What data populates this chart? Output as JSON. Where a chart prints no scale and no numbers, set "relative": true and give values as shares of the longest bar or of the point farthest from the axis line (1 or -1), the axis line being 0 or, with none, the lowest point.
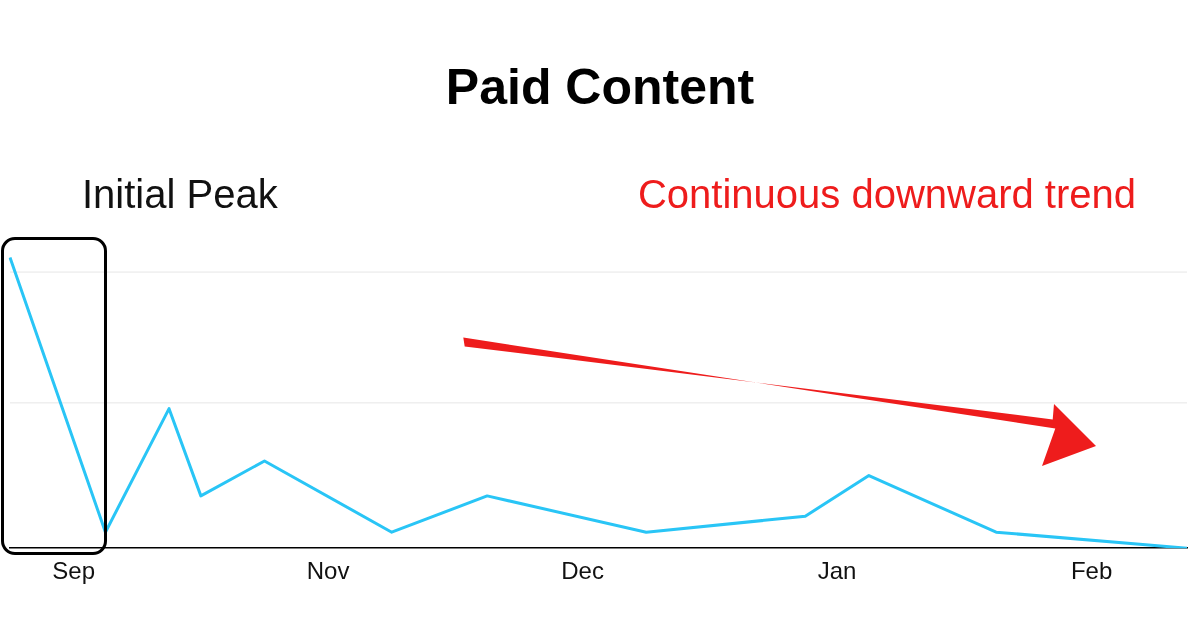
{
  "chart_data": {
    "type": "line",
    "title": "Paid Content",
    "relative": true,
    "categories": [
      null,
      null,
      "Sep",
      null,
      null,
      null,
      null,
      null,
      null,
      null,
      "Nov",
      null,
      null,
      null,
      null,
      null,
      null,
      null,
      "Dec",
      null,
      null,
      null,
      null,
      null,
      null,
      null,
      "Jan",
      null,
      null,
      null,
      null,
      null,
      null,
      null,
      "Feb",
      null,
      null,
      null
    ],
    "series": [
      {
        "color": "#29c5f6",
        "values": [
          1,
          null,
          null,
          0.055,
          null,
          0.48,
          0.18,
          null,
          0.3,
          null,
          null,
          null,
          0.055,
          null,
          null,
          0.18,
          null,
          null,
          null,
          null,
          0.055,
          null,
          null,
          null,
          null,
          0.11,
          null,
          0.25,
          null,
          null,
          null,
          0.055,
          null,
          null,
          null,
          null,
          null,
          0
        ]
      }
    ],
    "annotations": [
      "Initial Peak",
      "Continuous downward trend"
    ],
    "ref_lines": [
      {
        "axis": "y",
        "value": 0.5,
        "color": "#e6e6e6"
      },
      {
        "axis": "y",
        "value": 0.95,
        "color": "#e6e6e6"
      }
    ],
    "marker": "none",
    "legend": false
  }
}
